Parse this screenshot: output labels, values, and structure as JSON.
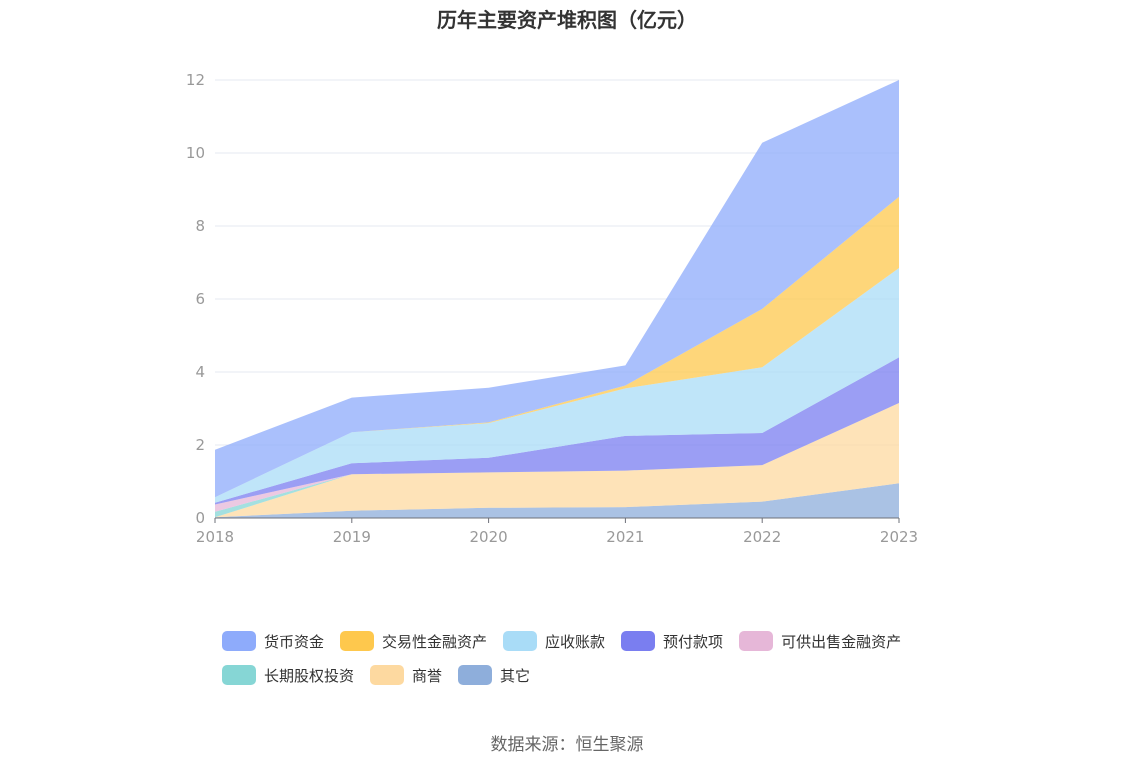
{
  "colors": {
    "货币资金": "#8eabfb",
    "交易性金融资产": "#fec84d",
    "应收账款": "#a9dcf7",
    "预付款项": "#7a7ef0",
    "可供出售金融资产": "#e6b7d8",
    "长期股权投资": "#86d6d5",
    "商誉": "#fdd9a0",
    "其它": "#8eaedb"
  },
  "chart_data": {
    "type": "area",
    "stacked": true,
    "title": "历年主要资产堆积图（亿元）",
    "x": [
      "2018",
      "2019",
      "2020",
      "2021",
      "2022",
      "2023"
    ],
    "ylim": [
      0,
      12
    ],
    "yticks": [
      0,
      2,
      4,
      6,
      8,
      10,
      12
    ],
    "grid": true,
    "legend_position": "bottom",
    "series": [
      {
        "name": "其它",
        "values": [
          0.02,
          0.2,
          0.28,
          0.3,
          0.45,
          0.95
        ]
      },
      {
        "name": "商誉",
        "values": [
          0.0,
          1.0,
          0.97,
          1.0,
          1.0,
          2.2
        ]
      },
      {
        "name": "长期股权投资",
        "values": [
          0.15,
          0.0,
          0.0,
          0.0,
          0.0,
          0.0
        ]
      },
      {
        "name": "可供出售金融资产",
        "values": [
          0.2,
          0.0,
          0.0,
          0.0,
          0.0,
          0.0
        ]
      },
      {
        "name": "预付款项",
        "values": [
          0.05,
          0.3,
          0.4,
          0.95,
          0.88,
          1.25
        ]
      },
      {
        "name": "应收账款",
        "values": [
          0.15,
          0.85,
          0.95,
          1.3,
          1.8,
          2.45
        ]
      },
      {
        "name": "交易性金融资产",
        "values": [
          0.0,
          0.0,
          0.02,
          0.08,
          1.6,
          1.95
        ]
      },
      {
        "name": "货币资金",
        "values": [
          1.3,
          0.95,
          0.95,
          0.55,
          4.55,
          3.2
        ]
      }
    ]
  },
  "legend": [
    {
      "label": "货币资金",
      "color": "#8eabfb"
    },
    {
      "label": "交易性金融资产",
      "color": "#fec84d"
    },
    {
      "label": "应收账款",
      "color": "#a9dcf7"
    },
    {
      "label": "预付款项",
      "color": "#7a7ef0"
    },
    {
      "label": "可供出售金融资产",
      "color": "#e6b7d8"
    },
    {
      "label": "长期股权投资",
      "color": "#86d6d5"
    },
    {
      "label": "商誉",
      "color": "#fdd9a0"
    },
    {
      "label": "其它",
      "color": "#8eaedb"
    }
  ],
  "source": "数据来源：恒生聚源"
}
